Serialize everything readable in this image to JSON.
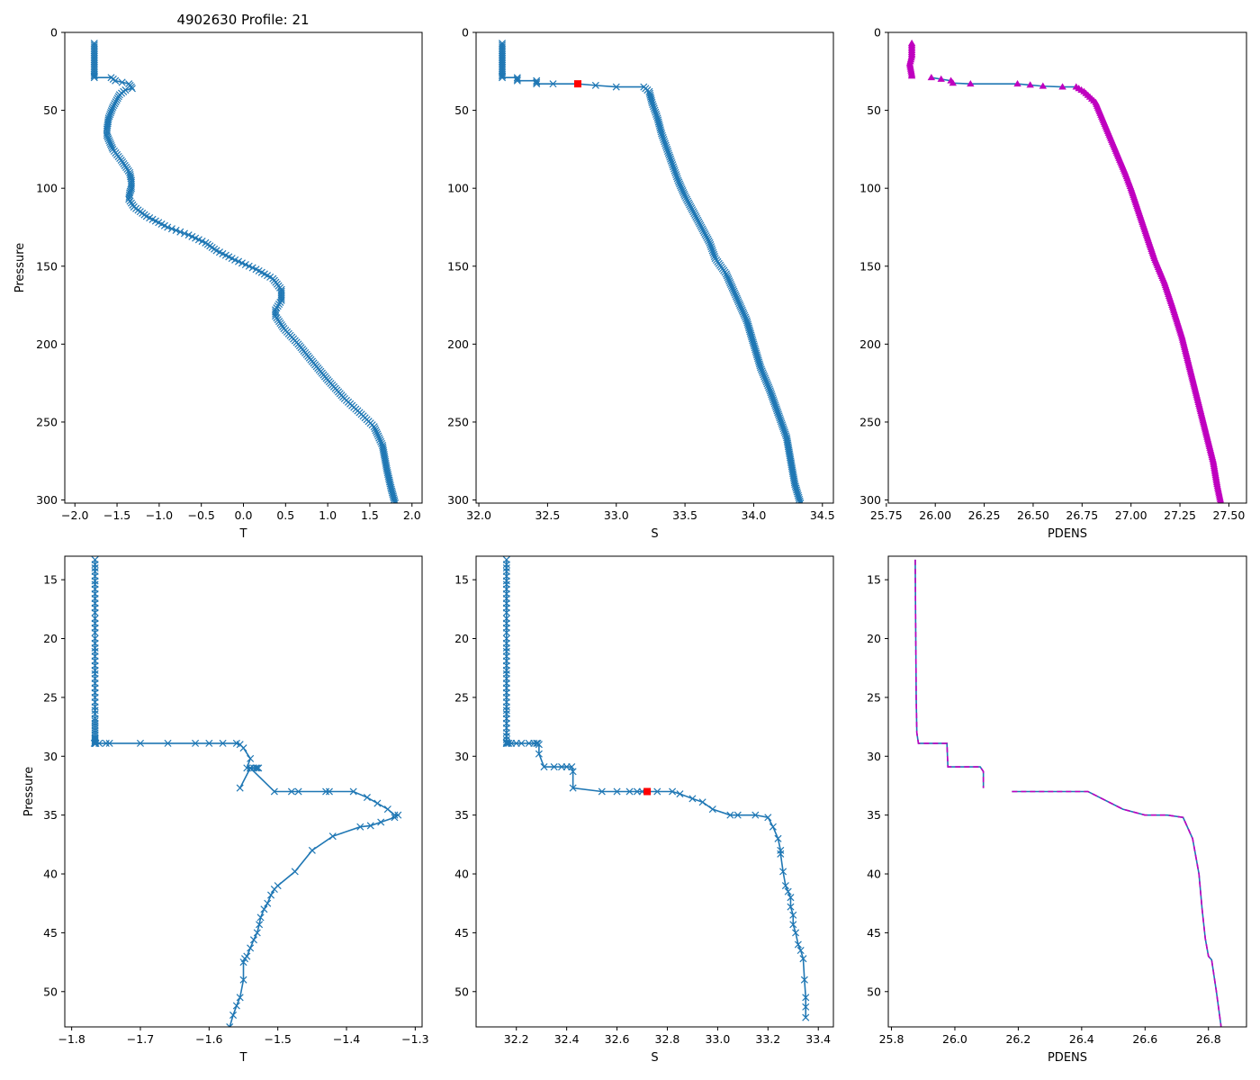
{
  "figure_title": "4902630 Profile: 21",
  "colors": {
    "series": "#1f77b4",
    "density": "#bf00bf",
    "marker": "#ff0000",
    "axes": "#000000"
  },
  "chart_data": [
    {
      "id": "top-temperature",
      "type": "line",
      "title": "4902630 Profile: 21",
      "xlabel": "T",
      "ylabel": "Pressure",
      "xlim": [
        -2.12,
        2.12
      ],
      "ylim": [
        302,
        0
      ],
      "xticks": [
        -2.0,
        -1.5,
        -1.0,
        -0.5,
        0.0,
        0.5,
        1.0,
        1.5,
        2.0
      ],
      "xtick_labels": [
        "−2.0",
        "−1.5",
        "−1.0",
        "−0.5",
        "0.0",
        "0.5",
        "1.0",
        "1.5",
        "2.0"
      ],
      "yticks": [
        0,
        50,
        100,
        150,
        200,
        250,
        300
      ],
      "ytick_labels": [
        "0",
        "50",
        "100",
        "150",
        "200",
        "250",
        "300"
      ],
      "series": [
        {
          "name": "T",
          "marker": "x",
          "dense_markers": true,
          "x": [
            -1.77,
            -1.77,
            -1.77,
            -1.77,
            -1.57,
            -1.52,
            -1.36,
            -1.33,
            -1.32,
            -1.4,
            -1.47,
            -1.55,
            -1.6,
            -1.62,
            -1.62,
            -1.55,
            -1.45,
            -1.35,
            -1.33,
            -1.33,
            -1.35,
            -1.36,
            -1.3,
            -1.15,
            -0.9,
            -0.65,
            -0.45,
            -0.32,
            -0.1,
            0.15,
            0.35,
            0.45,
            0.45,
            0.38,
            0.38,
            0.48,
            0.65,
            0.8,
            1.0,
            1.2,
            1.4,
            1.55,
            1.65,
            1.7,
            1.75,
            1.8
          ],
          "y": [
            7,
            20,
            27,
            29,
            29,
            31,
            33,
            35,
            36,
            37,
            40,
            48,
            55,
            62,
            66,
            75,
            82,
            90,
            95,
            100,
            103,
            107,
            112,
            118,
            125,
            130,
            135,
            140,
            146,
            152,
            158,
            165,
            172,
            178,
            182,
            190,
            200,
            210,
            223,
            235,
            245,
            253,
            265,
            280,
            292,
            302
          ]
        }
      ]
    },
    {
      "id": "top-salinity",
      "type": "line",
      "title": "",
      "xlabel": "S",
      "ylabel": "",
      "xlim": [
        31.98,
        34.58
      ],
      "ylim": [
        302,
        0
      ],
      "xticks": [
        32.0,
        32.5,
        33.0,
        33.5,
        34.0,
        34.5
      ],
      "xtick_labels": [
        "32.0",
        "32.5",
        "33.0",
        "33.5",
        "34.0",
        "34.5"
      ],
      "yticks": [
        0,
        50,
        100,
        150,
        200,
        250,
        300
      ],
      "ytick_labels": [
        "0",
        "50",
        "100",
        "150",
        "200",
        "250",
        "300"
      ],
      "series": [
        {
          "name": "S",
          "marker": "x",
          "dense_markers": true,
          "x": [
            32.17,
            32.17,
            32.17,
            32.17,
            32.28,
            32.28,
            32.42,
            32.42,
            32.54,
            32.72,
            32.85,
            33.0,
            33.2,
            33.24,
            33.26,
            33.3,
            33.33,
            33.37,
            33.41,
            33.45,
            33.5,
            33.56,
            33.62,
            33.68,
            33.72,
            33.8,
            33.85,
            33.9,
            33.95,
            34.0,
            34.05,
            34.12,
            34.18,
            34.24,
            34.27,
            34.3,
            34.34
          ],
          "y": [
            7,
            20,
            27,
            29,
            29,
            31,
            31,
            33,
            33,
            33,
            34,
            35,
            35,
            38,
            45,
            55,
            65,
            75,
            85,
            95,
            105,
            115,
            125,
            135,
            145,
            155,
            165,
            175,
            185,
            200,
            215,
            230,
            245,
            260,
            275,
            290,
            302
          ]
        }
      ],
      "highlight_point": {
        "x": 32.72,
        "y": 33,
        "marker": "square"
      }
    },
    {
      "id": "top-density",
      "type": "line",
      "title": "",
      "xlabel": "PDENS",
      "ylabel": "",
      "xlim": [
        25.76,
        27.59
      ],
      "ylim": [
        302,
        0
      ],
      "xticks": [
        25.75,
        26.0,
        26.25,
        26.5,
        26.75,
        27.0,
        27.25,
        27.5
      ],
      "xtick_labels": [
        "25.75",
        "26.00",
        "26.25",
        "26.50",
        "26.75",
        "27.00",
        "27.25",
        "27.50"
      ],
      "yticks": [
        0,
        50,
        100,
        150,
        200,
        250,
        300
      ],
      "ytick_labels": [
        "0",
        "50",
        "100",
        "150",
        "200",
        "250",
        "300"
      ],
      "series": [
        {
          "name": "PDENS",
          "marker": "triangle",
          "dense_markers": true,
          "gap_after_index": 4,
          "x": [
            25.88,
            25.88,
            25.87,
            25.88,
            25.88,
            25.98,
            26.08,
            26.09,
            26.18,
            26.42,
            26.55,
            26.65,
            26.72,
            26.76,
            26.82,
            26.87,
            26.92,
            26.97,
            27.0,
            27.04,
            27.08,
            27.12,
            27.17,
            27.21,
            27.26,
            27.3,
            27.34,
            27.38,
            27.42,
            27.44,
            27.46
          ],
          "y": [
            7,
            15,
            20,
            27,
            29,
            29,
            31,
            32.5,
            33,
            33,
            34.5,
            35,
            35,
            38,
            45,
            60,
            75,
            90,
            100,
            115,
            130,
            145,
            160,
            175,
            195,
            215,
            235,
            255,
            275,
            290,
            302
          ]
        }
      ]
    },
    {
      "id": "bottom-temperature",
      "type": "line",
      "title": "",
      "xlabel": "T",
      "ylabel": "Pressure",
      "xlim": [
        -1.81,
        -1.29
      ],
      "ylim": [
        53,
        13
      ],
      "xticks": [
        -1.8,
        -1.7,
        -1.6,
        -1.5,
        -1.4,
        -1.3
      ],
      "xtick_labels": [
        "−1.8",
        "−1.7",
        "−1.6",
        "−1.5",
        "−1.4",
        "−1.3"
      ],
      "yticks": [
        15,
        20,
        25,
        30,
        35,
        40,
        45,
        50
      ],
      "ytick_labels": [
        "15",
        "20",
        "25",
        "30",
        "35",
        "40",
        "45",
        "50"
      ],
      "series": [
        {
          "name": "T",
          "marker": "x",
          "dense_markers": false,
          "x": [
            -1.766,
            -1.766,
            -1.766,
            -1.766,
            -1.766,
            -1.766,
            -1.766,
            -1.766,
            -1.766,
            -1.766,
            -1.766,
            -1.766,
            -1.766,
            -1.766,
            -1.766,
            -1.766,
            -1.766,
            -1.766,
            -1.766,
            -1.766,
            -1.766,
            -1.766,
            -1.766,
            -1.766,
            -1.766,
            -1.766,
            -1.766,
            -1.766,
            -1.766,
            -1.766,
            -1.766,
            -1.766,
            -1.766,
            -1.766,
            -1.766,
            -1.766,
            -1.766,
            -1.766,
            -1.766,
            -1.766,
            -1.766,
            -1.766,
            -1.766,
            -1.766,
            -1.766,
            -1.766,
            -1.766,
            -1.766,
            -1.766,
            -1.766,
            -1.766,
            -1.766,
            -1.766,
            -1.766,
            -1.765,
            -1.767,
            -1.765,
            -1.766,
            -1.76,
            -1.75,
            -1.745,
            -1.7,
            -1.66,
            -1.62,
            -1.6,
            -1.58,
            -1.56,
            -1.555,
            -1.55,
            -1.54,
            -1.545,
            -1.54,
            -1.532,
            -1.53,
            -1.528,
            -1.535,
            -1.54,
            -1.555,
            -1.54,
            -1.505,
            -1.48,
            -1.47,
            -1.43,
            -1.425,
            -1.39,
            -1.37,
            -1.355,
            -1.34,
            -1.33,
            -1.325,
            -1.33,
            -1.35,
            -1.365,
            -1.38,
            -1.42,
            -1.45,
            -1.475,
            -1.5,
            -1.505,
            -1.51,
            -1.515,
            -1.52,
            -1.525,
            -1.527,
            -1.53,
            -1.535,
            -1.54,
            -1.545,
            -1.548,
            -1.55,
            -1.55,
            -1.555,
            -1.56,
            -1.565,
            -1.57
          ],
          "y": [
            13.3,
            13.7,
            14.0,
            14.3,
            14.7,
            15.1,
            15.4,
            15.8,
            16.2,
            16.6,
            17.0,
            17.4,
            17.8,
            18.3,
            18.7,
            19.1,
            19.5,
            20.0,
            20.4,
            20.8,
            21.1,
            21.5,
            21.9,
            22.3,
            22.7,
            23.0,
            23.4,
            23.8,
            24.2,
            24.6,
            25.0,
            25.4,
            25.8,
            26.1,
            26.4,
            26.8,
            27.0,
            27.2,
            27.4,
            27.6,
            27.8,
            28.0,
            28.2,
            28.4,
            28.5,
            28.6,
            28.7,
            28.8,
            28.85,
            28.9,
            28.9,
            28.9,
            28.9,
            28.9,
            28.9,
            28.9,
            28.9,
            28.9,
            28.9,
            28.9,
            28.9,
            28.9,
            28.9,
            28.9,
            28.9,
            28.9,
            28.9,
            29.0,
            29.3,
            30.2,
            31.0,
            31.0,
            31.0,
            31.0,
            31.0,
            31.0,
            31.0,
            32.7,
            31.0,
            33.0,
            33.0,
            33.0,
            33.0,
            33.0,
            33.0,
            33.5,
            34.0,
            34.5,
            35.0,
            35.0,
            35.2,
            35.6,
            35.9,
            36.0,
            36.8,
            38.0,
            39.8,
            41.0,
            41.3,
            41.8,
            42.5,
            43.0,
            43.7,
            44.3,
            45.0,
            45.6,
            46.3,
            47.0,
            47.2,
            47.5,
            49.0,
            50.5,
            51.2,
            52.0,
            53.0
          ]
        }
      ]
    },
    {
      "id": "bottom-salinity",
      "type": "line",
      "title": "",
      "xlabel": "S",
      "ylabel": "",
      "xlim": [
        32.04,
        33.46
      ],
      "ylim": [
        53,
        13
      ],
      "xticks": [
        32.2,
        32.4,
        32.6,
        32.8,
        33.0,
        33.2,
        33.4
      ],
      "xtick_labels": [
        "32.2",
        "32.4",
        "32.6",
        "32.8",
        "33.0",
        "33.2",
        "33.4"
      ],
      "yticks": [
        15,
        20,
        25,
        30,
        35,
        40,
        45,
        50
      ],
      "ytick_labels": [
        "15",
        "20",
        "25",
        "30",
        "35",
        "40",
        "45",
        "50"
      ],
      "series": [
        {
          "name": "S",
          "marker": "x",
          "dense_markers": false,
          "x": [
            32.161,
            32.161,
            32.161,
            32.161,
            32.161,
            32.161,
            32.161,
            32.161,
            32.161,
            32.161,
            32.161,
            32.161,
            32.161,
            32.161,
            32.161,
            32.161,
            32.161,
            32.161,
            32.161,
            32.161,
            32.161,
            32.161,
            32.161,
            32.161,
            32.161,
            32.161,
            32.161,
            32.161,
            32.161,
            32.161,
            32.161,
            32.161,
            32.161,
            32.161,
            32.161,
            32.161,
            32.161,
            32.161,
            32.161,
            32.161,
            32.161,
            32.161,
            32.161,
            32.161,
            32.161,
            32.161,
            32.165,
            32.17,
            32.18,
            32.2,
            32.22,
            32.25,
            32.27,
            32.28,
            32.285,
            32.29,
            32.29,
            32.31,
            32.35,
            32.38,
            32.4,
            32.42,
            32.425,
            32.425,
            32.54,
            32.6,
            32.65,
            32.68,
            32.7,
            32.72,
            32.76,
            32.82,
            32.85,
            32.9,
            32.94,
            32.98,
            33.05,
            33.08,
            33.15,
            33.2,
            33.22,
            33.24,
            33.25,
            33.25,
            33.26,
            33.27,
            33.28,
            33.29,
            33.29,
            33.3,
            33.3,
            33.31,
            33.32,
            33.33,
            33.34,
            33.345,
            33.35,
            33.35,
            33.35
          ],
          "y": [
            13.3,
            13.7,
            14.0,
            14.3,
            14.7,
            15.1,
            15.4,
            15.8,
            16.2,
            16.6,
            17.0,
            17.4,
            17.8,
            18.3,
            18.7,
            19.1,
            19.5,
            20.0,
            20.4,
            20.8,
            21.1,
            21.5,
            21.9,
            22.3,
            22.7,
            23.0,
            23.4,
            23.8,
            24.2,
            24.6,
            25.0,
            25.4,
            25.8,
            26.1,
            26.4,
            26.8,
            27.2,
            27.6,
            28.0,
            28.3,
            28.6,
            28.8,
            28.9,
            28.9,
            28.9,
            28.9,
            28.9,
            28.9,
            28.9,
            28.9,
            28.9,
            28.9,
            28.9,
            28.9,
            28.9,
            29.0,
            29.8,
            30.9,
            30.9,
            30.9,
            30.9,
            30.9,
            31.3,
            32.7,
            33.0,
            33.0,
            33.0,
            33.0,
            33.0,
            33.0,
            33.0,
            33.0,
            33.2,
            33.6,
            33.9,
            34.5,
            35.0,
            35.0,
            35.0,
            35.2,
            36.0,
            37.0,
            38.0,
            38.3,
            39.8,
            41.0,
            41.5,
            42.0,
            42.8,
            43.5,
            44.3,
            45.0,
            46.0,
            46.5,
            47.2,
            49.0,
            50.5,
            51.3,
            52.2
          ]
        }
      ],
      "highlight_point": {
        "x": 32.72,
        "y": 33,
        "marker": "square"
      }
    },
    {
      "id": "bottom-density",
      "type": "line",
      "title": "",
      "xlabel": "PDENS",
      "ylabel": "",
      "xlim": [
        25.79,
        26.92
      ],
      "ylim": [
        53,
        13
      ],
      "xticks": [
        25.8,
        26.0,
        26.2,
        26.4,
        26.6,
        26.8
      ],
      "xtick_labels": [
        "25.8",
        "26.0",
        "26.2",
        "26.4",
        "26.6",
        "26.8"
      ],
      "yticks": [
        15,
        20,
        25,
        30,
        35,
        40,
        45,
        50
      ],
      "ytick_labels": [
        "15",
        "20",
        "25",
        "30",
        "35",
        "40",
        "45",
        "50"
      ],
      "series": [
        {
          "name": "PDENS",
          "marker": "none",
          "dense_markers": false,
          "gap_after_index": 10,
          "x": [
            25.875,
            25.876,
            25.877,
            25.878,
            25.88,
            25.885,
            25.975,
            25.978,
            26.08,
            26.09,
            26.09,
            26.18,
            26.42,
            26.53,
            26.6,
            26.67,
            26.72,
            26.75,
            26.77,
            26.78,
            26.79,
            26.8,
            26.81,
            26.825,
            26.84
          ],
          "y": [
            13.3,
            18.0,
            21.0,
            25.0,
            28.0,
            28.9,
            28.9,
            30.9,
            30.9,
            31.3,
            32.7,
            33.0,
            33.0,
            34.5,
            35.0,
            35.0,
            35.2,
            37.0,
            40.0,
            43.0,
            45.5,
            47.0,
            47.3,
            50.0,
            53.0
          ]
        }
      ]
    }
  ]
}
